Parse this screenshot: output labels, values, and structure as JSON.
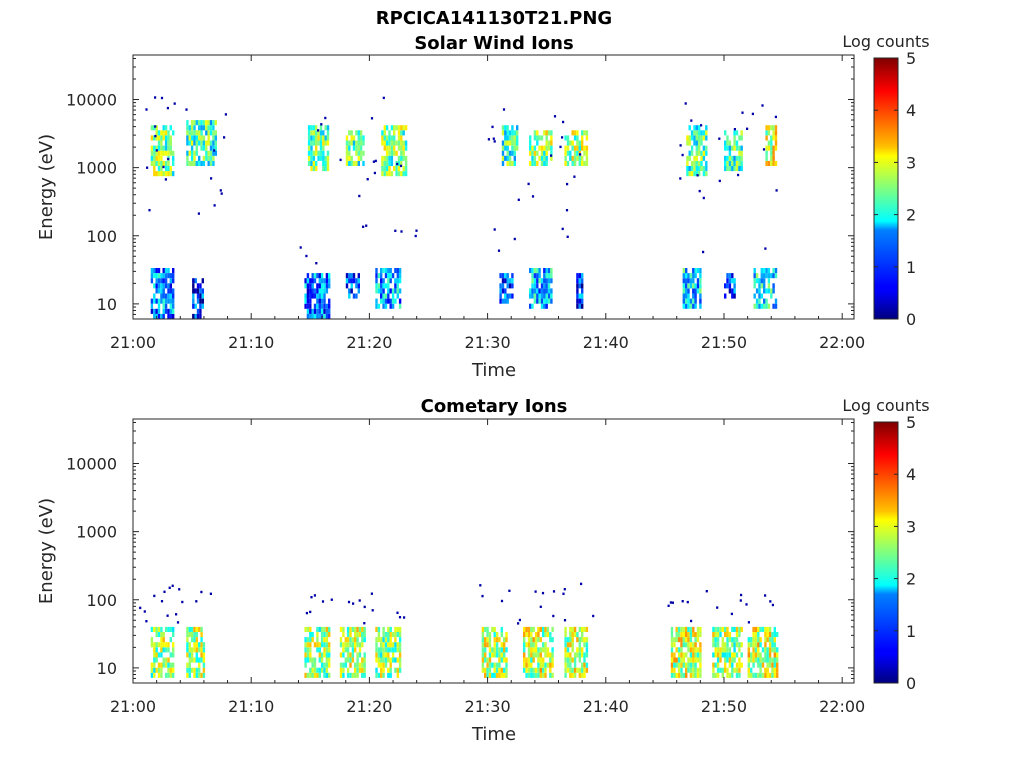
{
  "figure_title": "RPCICA141130T21.PNG",
  "chart_data": [
    {
      "type": "heatmap",
      "title": "Solar Wind Ions",
      "xlabel": "Time",
      "ylabel": "Energy (eV)",
      "y_scale": "log",
      "ylim": [
        6,
        45000
      ],
      "xlim": [
        "21:00",
        "22:01"
      ],
      "x_ticks": [
        "21:00",
        "21:10",
        "21:20",
        "21:30",
        "21:40",
        "21:50",
        "22:00"
      ],
      "y_ticks": [
        "10",
        "100",
        "1000",
        "10000"
      ],
      "colorbar": {
        "label": "Log counts",
        "range": [
          0,
          5
        ],
        "ticks": [
          "0",
          "1",
          "2",
          "3",
          "4",
          "5"
        ],
        "colormap": "jet"
      },
      "grid": false,
      "bursts": [
        {
          "t": [
            1.5,
            3.5
          ],
          "e": [
            800,
            4000
          ],
          "c": 2.5
        },
        {
          "t": [
            4.5,
            7.0
          ],
          "e": [
            1000,
            5000
          ],
          "c": 2.2
        },
        {
          "t": [
            14.8,
            16.5
          ],
          "e": [
            900,
            4000
          ],
          "c": 2.4
        },
        {
          "t": [
            18.0,
            19.5
          ],
          "e": [
            1100,
            3500
          ],
          "c": 2.3
        },
        {
          "t": [
            21.0,
            23.0
          ],
          "e": [
            800,
            4500
          ],
          "c": 2.5
        },
        {
          "t": [
            31.2,
            32.5
          ],
          "e": [
            1100,
            4000
          ],
          "c": 2.2
        },
        {
          "t": [
            33.5,
            35.5
          ],
          "e": [
            1000,
            3500
          ],
          "c": 2.6
        },
        {
          "t": [
            36.5,
            38.5
          ],
          "e": [
            1000,
            3500
          ],
          "c": 2.6
        },
        {
          "t": [
            46.8,
            48.5
          ],
          "e": [
            800,
            4000
          ],
          "c": 2.3
        },
        {
          "t": [
            50.0,
            51.5
          ],
          "e": [
            900,
            3500
          ],
          "c": 2.2
        },
        {
          "t": [
            53.5,
            54.5
          ],
          "e": [
            1000,
            4000
          ],
          "c": 2.8
        },
        {
          "t": [
            1.5,
            3.5
          ],
          "e": [
            6,
            35
          ],
          "c": 1.3
        },
        {
          "t": [
            5.0,
            6.0
          ],
          "e": [
            6,
            25
          ],
          "c": 0.8
        },
        {
          "t": [
            14.5,
            16.5
          ],
          "e": [
            6,
            30
          ],
          "c": 1.2
        },
        {
          "t": [
            18.0,
            19.0
          ],
          "e": [
            12,
            30
          ],
          "c": 0.9
        },
        {
          "t": [
            20.5,
            22.5
          ],
          "e": [
            9,
            35
          ],
          "c": 1.5
        },
        {
          "t": [
            31.0,
            32.0
          ],
          "e": [
            10,
            30
          ],
          "c": 1.0
        },
        {
          "t": [
            33.5,
            35.5
          ],
          "e": [
            9,
            35
          ],
          "c": 1.6
        },
        {
          "t": [
            37.5,
            38.0
          ],
          "e": [
            9,
            30
          ],
          "c": 0.9
        },
        {
          "t": [
            46.5,
            48.0
          ],
          "e": [
            9,
            35
          ],
          "c": 1.7
        },
        {
          "t": [
            50.0,
            51.0
          ],
          "e": [
            12,
            30
          ],
          "c": 1.0
        },
        {
          "t": [
            52.5,
            54.5
          ],
          "e": [
            9,
            35
          ],
          "c": 1.8
        }
      ],
      "scatter_times": [
        [
          1,
          8
        ],
        [
          14,
          24
        ],
        [
          30,
          39
        ],
        [
          46,
          55
        ]
      ]
    },
    {
      "type": "heatmap",
      "title": "Cometary Ions",
      "xlabel": "Time",
      "ylabel": "Energy (eV)",
      "y_scale": "log",
      "ylim": [
        6,
        45000
      ],
      "xlim": [
        "21:00",
        "22:01"
      ],
      "x_ticks": [
        "21:00",
        "21:10",
        "21:20",
        "21:30",
        "21:40",
        "21:50",
        "22:00"
      ],
      "y_ticks": [
        "10",
        "100",
        "1000",
        "10000"
      ],
      "colorbar": {
        "label": "Log counts",
        "range": [
          0,
          5
        ],
        "ticks": [
          "0",
          "1",
          "2",
          "3",
          "4",
          "5"
        ],
        "colormap": "jet"
      },
      "grid": false,
      "bursts": [
        {
          "t": [
            1.5,
            3.5
          ],
          "e": [
            7,
            38
          ],
          "c": 2.6
        },
        {
          "t": [
            4.5,
            6.0
          ],
          "e": [
            7,
            38
          ],
          "c": 2.7
        },
        {
          "t": [
            14.5,
            16.5
          ],
          "e": [
            7,
            40
          ],
          "c": 2.6
        },
        {
          "t": [
            17.5,
            19.5
          ],
          "e": [
            7,
            40
          ],
          "c": 2.7
        },
        {
          "t": [
            20.5,
            22.5
          ],
          "e": [
            7,
            40
          ],
          "c": 2.6
        },
        {
          "t": [
            29.5,
            31.5
          ],
          "e": [
            7,
            38
          ],
          "c": 2.7
        },
        {
          "t": [
            33.0,
            35.5
          ],
          "e": [
            7,
            40
          ],
          "c": 2.8
        },
        {
          "t": [
            36.5,
            38.5
          ],
          "e": [
            7,
            38
          ],
          "c": 2.7
        },
        {
          "t": [
            45.5,
            48.0
          ],
          "e": [
            7,
            40
          ],
          "c": 2.8
        },
        {
          "t": [
            49.0,
            51.5
          ],
          "e": [
            7,
            40
          ],
          "c": 2.6
        },
        {
          "t": [
            52.0,
            54.5
          ],
          "e": [
            7,
            40
          ],
          "c": 2.8
        }
      ],
      "scatter_times": [
        [
          0,
          7
        ],
        [
          14,
          23
        ],
        [
          29,
          39
        ],
        [
          45,
          55
        ]
      ]
    }
  ]
}
